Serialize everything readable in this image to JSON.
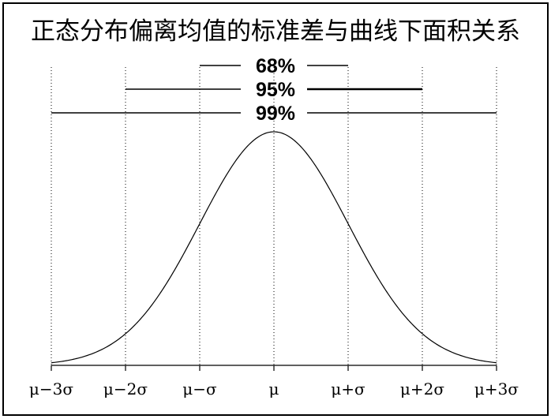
{
  "chart_data": {
    "type": "line",
    "title": "正态分布偏离均值的标准差与曲线下面积关系",
    "xlabel": "",
    "ylabel": "",
    "xlim": [
      -3,
      3
    ],
    "grid": false,
    "ticks": [
      {
        "value": -3,
        "label": "μ−3σ"
      },
      {
        "value": -2,
        "label": "μ−2σ"
      },
      {
        "value": -1,
        "label": "μ−σ"
      },
      {
        "value": 0,
        "label": "μ"
      },
      {
        "value": 1,
        "label": "μ+σ"
      },
      {
        "value": 2,
        "label": "μ+2σ"
      },
      {
        "value": 3,
        "label": "μ+3σ"
      }
    ],
    "brackets": [
      {
        "label": "68%",
        "from": -1,
        "to": 1
      },
      {
        "label": "95%",
        "from": -2,
        "to": 2
      },
      {
        "label": "99%",
        "from": -3,
        "to": 3
      }
    ],
    "curve": "standard-normal-density"
  }
}
